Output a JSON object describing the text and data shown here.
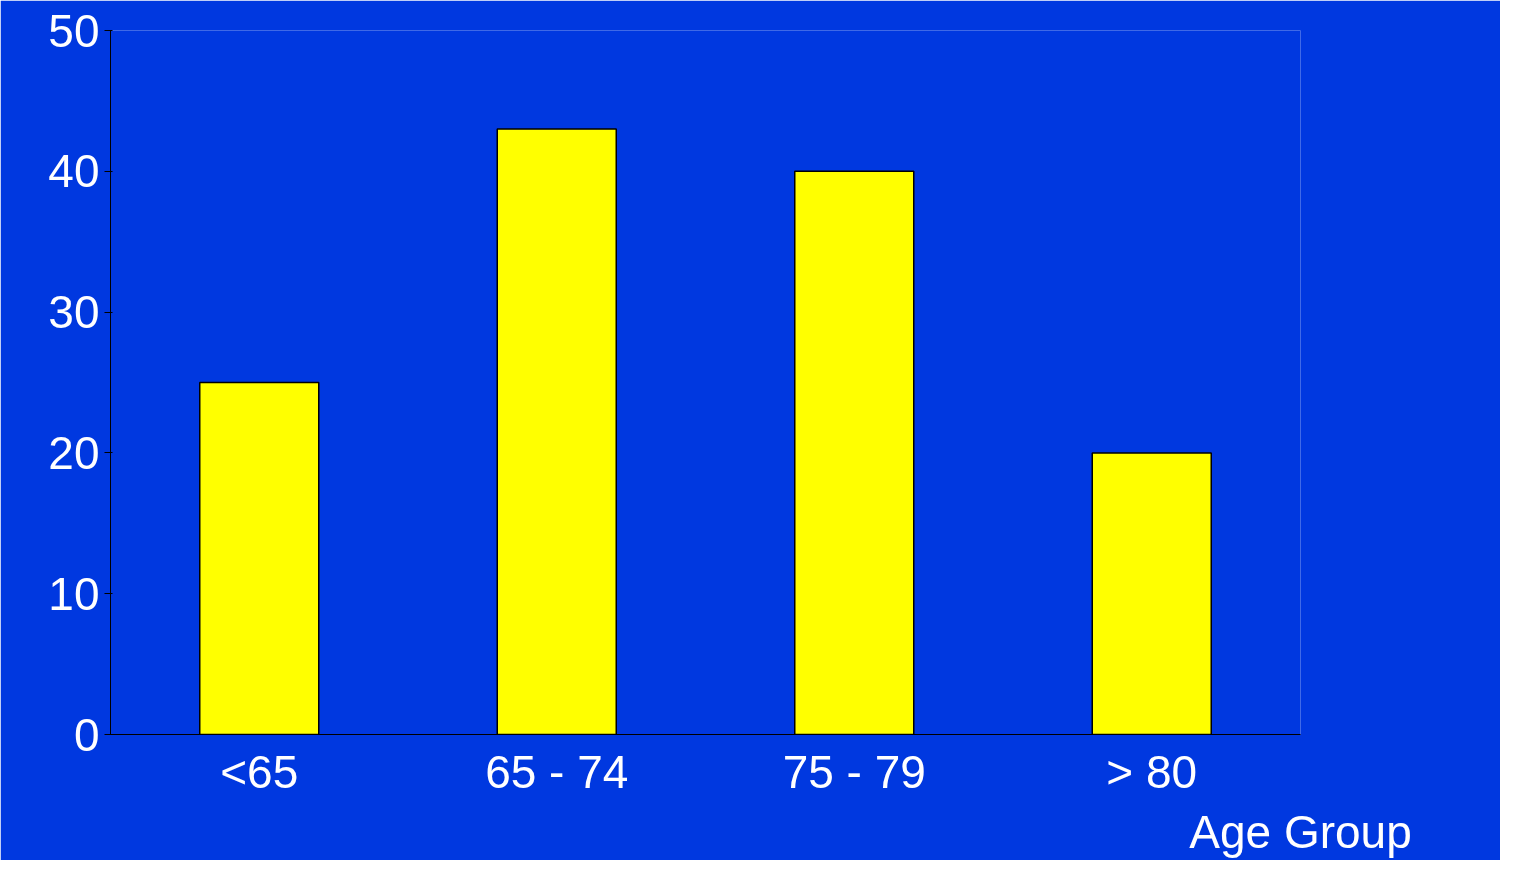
{
  "chart_data": {
    "type": "bar",
    "xlabel": "Age Group",
    "categories": [
      "<65",
      "65 - 74",
      "75 - 79",
      "> 80"
    ],
    "values": [
      25,
      43,
      40,
      20
    ],
    "color": "#ffff00",
    "ylim": [
      0,
      50
    ],
    "yticks": [
      0,
      10,
      20,
      30,
      40,
      50
    ],
    "grid": false
  }
}
